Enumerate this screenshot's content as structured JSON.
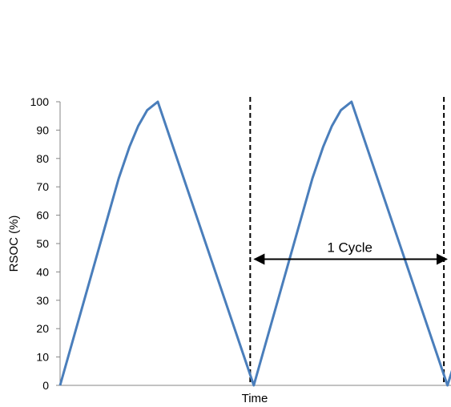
{
  "chart_data": {
    "type": "line",
    "title": "",
    "xlabel": "Time",
    "ylabel": "RSOC (%)",
    "ylim": [
      0,
      100
    ],
    "yticks": [
      0,
      10,
      20,
      30,
      40,
      50,
      60,
      70,
      80,
      90,
      100
    ],
    "xlim": [
      0,
      22
    ],
    "grid": false,
    "legend": "none",
    "series": [
      {
        "color": "#4a7ebb",
        "x": [
          0,
          3.3,
          3.9,
          4.4,
          4.9,
          5.5,
          10.9,
          14.2,
          14.8,
          15.3,
          15.8,
          16.4,
          21.8,
          24.2
        ],
        "y": [
          0,
          73,
          84,
          91.5,
          97,
          100,
          0,
          73,
          84,
          91.5,
          97,
          100,
          0,
          48
        ]
      }
    ],
    "markers": {
      "cycle_boundaries_x": [
        10.7,
        21.6
      ],
      "line_style": "dashed",
      "color": "#000000"
    },
    "annotations": [
      {
        "text": "1 Cycle",
        "x_from": 10.9,
        "x_to": 21.8,
        "y": 44.5
      }
    ]
  }
}
